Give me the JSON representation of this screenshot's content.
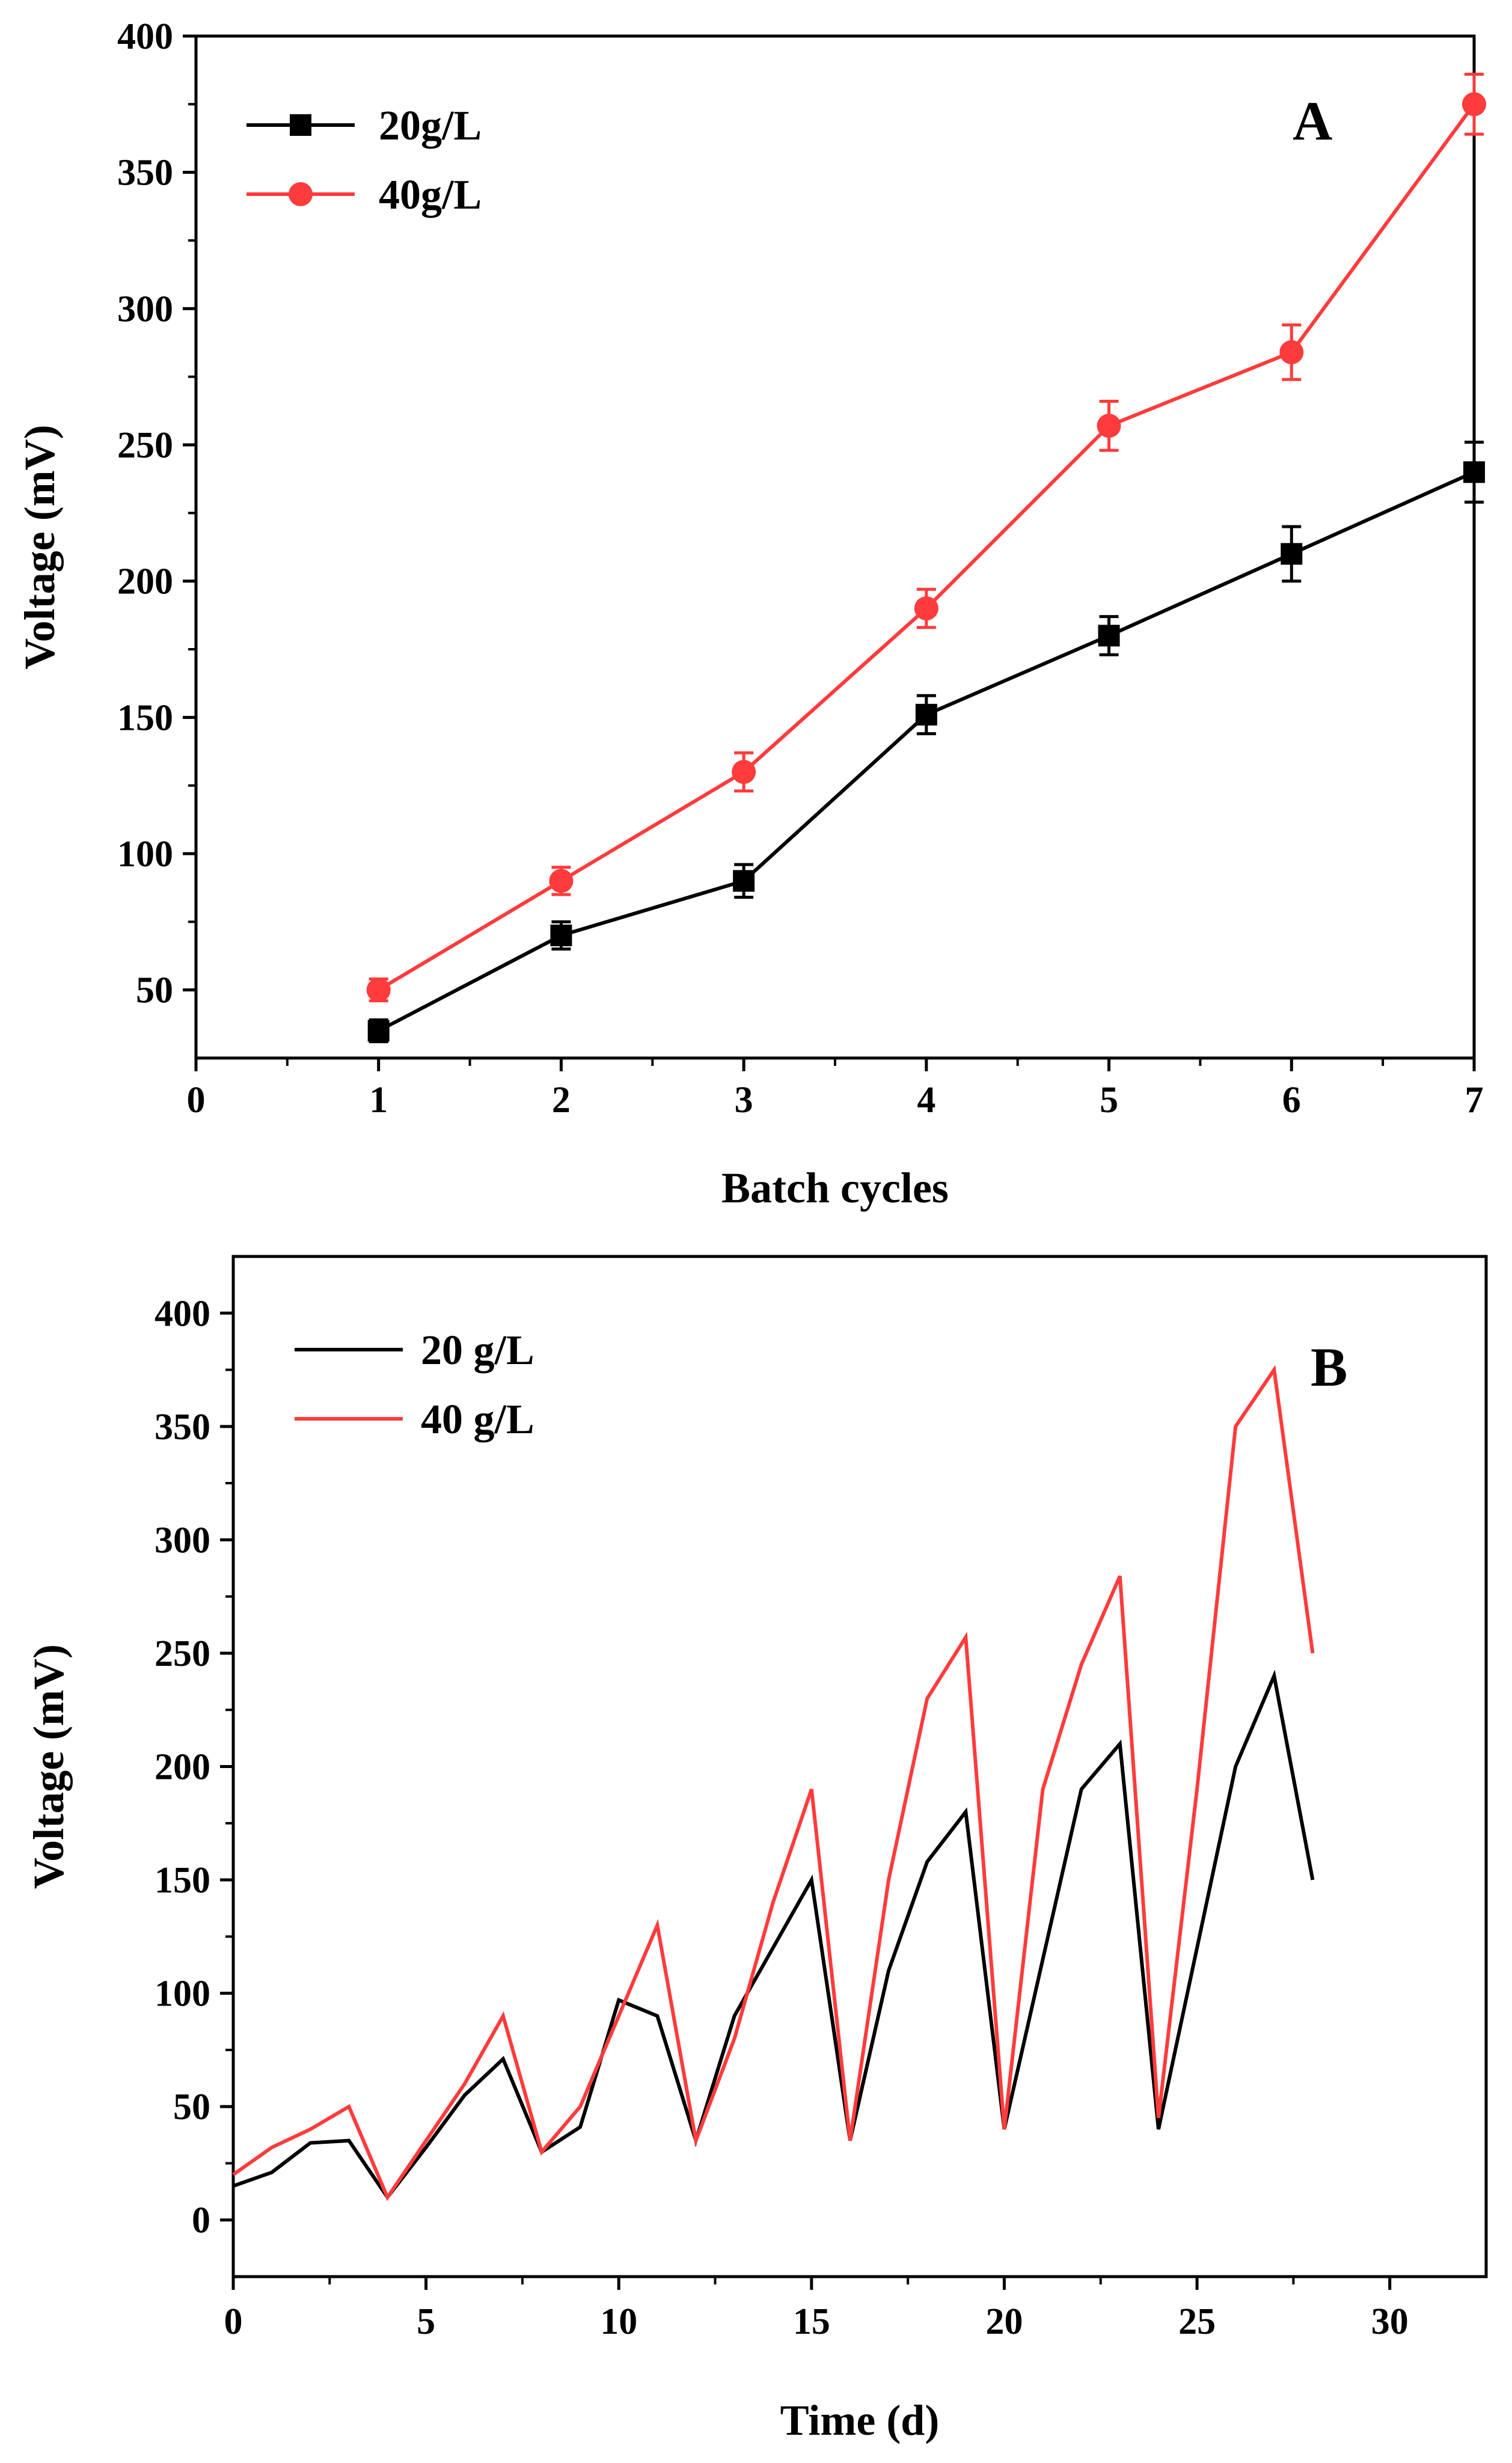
{
  "chart_data": [
    {
      "id": "A",
      "type": "line",
      "panel_label": "A",
      "xlabel": "Batch cycles",
      "ylabel": "Voltage (mV)",
      "xlim": [
        0,
        7
      ],
      "ylim": [
        25,
        400
      ],
      "xticks": [
        0,
        1,
        2,
        3,
        4,
        5,
        6,
        7
      ],
      "yticks": [
        50,
        100,
        150,
        200,
        250,
        300,
        350,
        400
      ],
      "legend_position": "top-left",
      "x": [
        1,
        2,
        3,
        4,
        5,
        6,
        7
      ],
      "series": [
        {
          "name": "20g/L",
          "color": "#000000",
          "marker": "square",
          "values": [
            35,
            70,
            90,
            151,
            180,
            210,
            240
          ],
          "errors": [
            4,
            5,
            6,
            7,
            7,
            10,
            11
          ]
        },
        {
          "name": "40g/L",
          "color": "#ff3b3b",
          "marker": "circle",
          "values": [
            50,
            90,
            130,
            190,
            257,
            284,
            375
          ],
          "errors": [
            4,
            5,
            7,
            7,
            9,
            10,
            11
          ]
        }
      ]
    },
    {
      "id": "B",
      "type": "line",
      "panel_label": "B",
      "xlabel": "Time (d)",
      "ylabel": "Voltage (mV)",
      "xlim": [
        0,
        32.5
      ],
      "ylim": [
        -25,
        425
      ],
      "xticks": [
        0,
        5,
        10,
        15,
        20,
        25,
        30
      ],
      "yticks": [
        0,
        50,
        100,
        150,
        200,
        250,
        300,
        350,
        400
      ],
      "legend_position": "top-left",
      "series": [
        {
          "name": "20 g/L",
          "color": "#000000",
          "x": [
            0,
            1,
            2,
            3,
            4,
            5,
            6,
            7,
            8,
            9,
            10,
            11,
            12,
            13,
            14,
            15,
            16,
            17,
            18,
            19,
            20,
            21,
            22,
            23,
            24,
            25,
            26,
            27,
            28
          ],
          "values": [
            15,
            21,
            34,
            35,
            10,
            32,
            55,
            71,
            30,
            41,
            97,
            90,
            35,
            90,
            120,
            150,
            35,
            110,
            158,
            180,
            40,
            115,
            190,
            210,
            40,
            120,
            200,
            240,
            150
          ]
        },
        {
          "name": "40 g/L",
          "color": "#ff3b3b",
          "x": [
            0,
            1,
            2,
            3,
            4,
            5,
            6,
            7,
            8,
            9,
            10,
            11,
            12,
            13,
            14,
            15,
            16,
            17,
            18,
            19,
            20,
            21,
            22,
            23,
            24,
            25,
            26,
            27,
            28
          ],
          "values": [
            20,
            32,
            40,
            50,
            10,
            35,
            60,
            90,
            30,
            50,
            90,
            130,
            35,
            80,
            140,
            190,
            35,
            150,
            230,
            257,
            40,
            190,
            245,
            284,
            45,
            190,
            350,
            375,
            250
          ]
        }
      ]
    }
  ]
}
